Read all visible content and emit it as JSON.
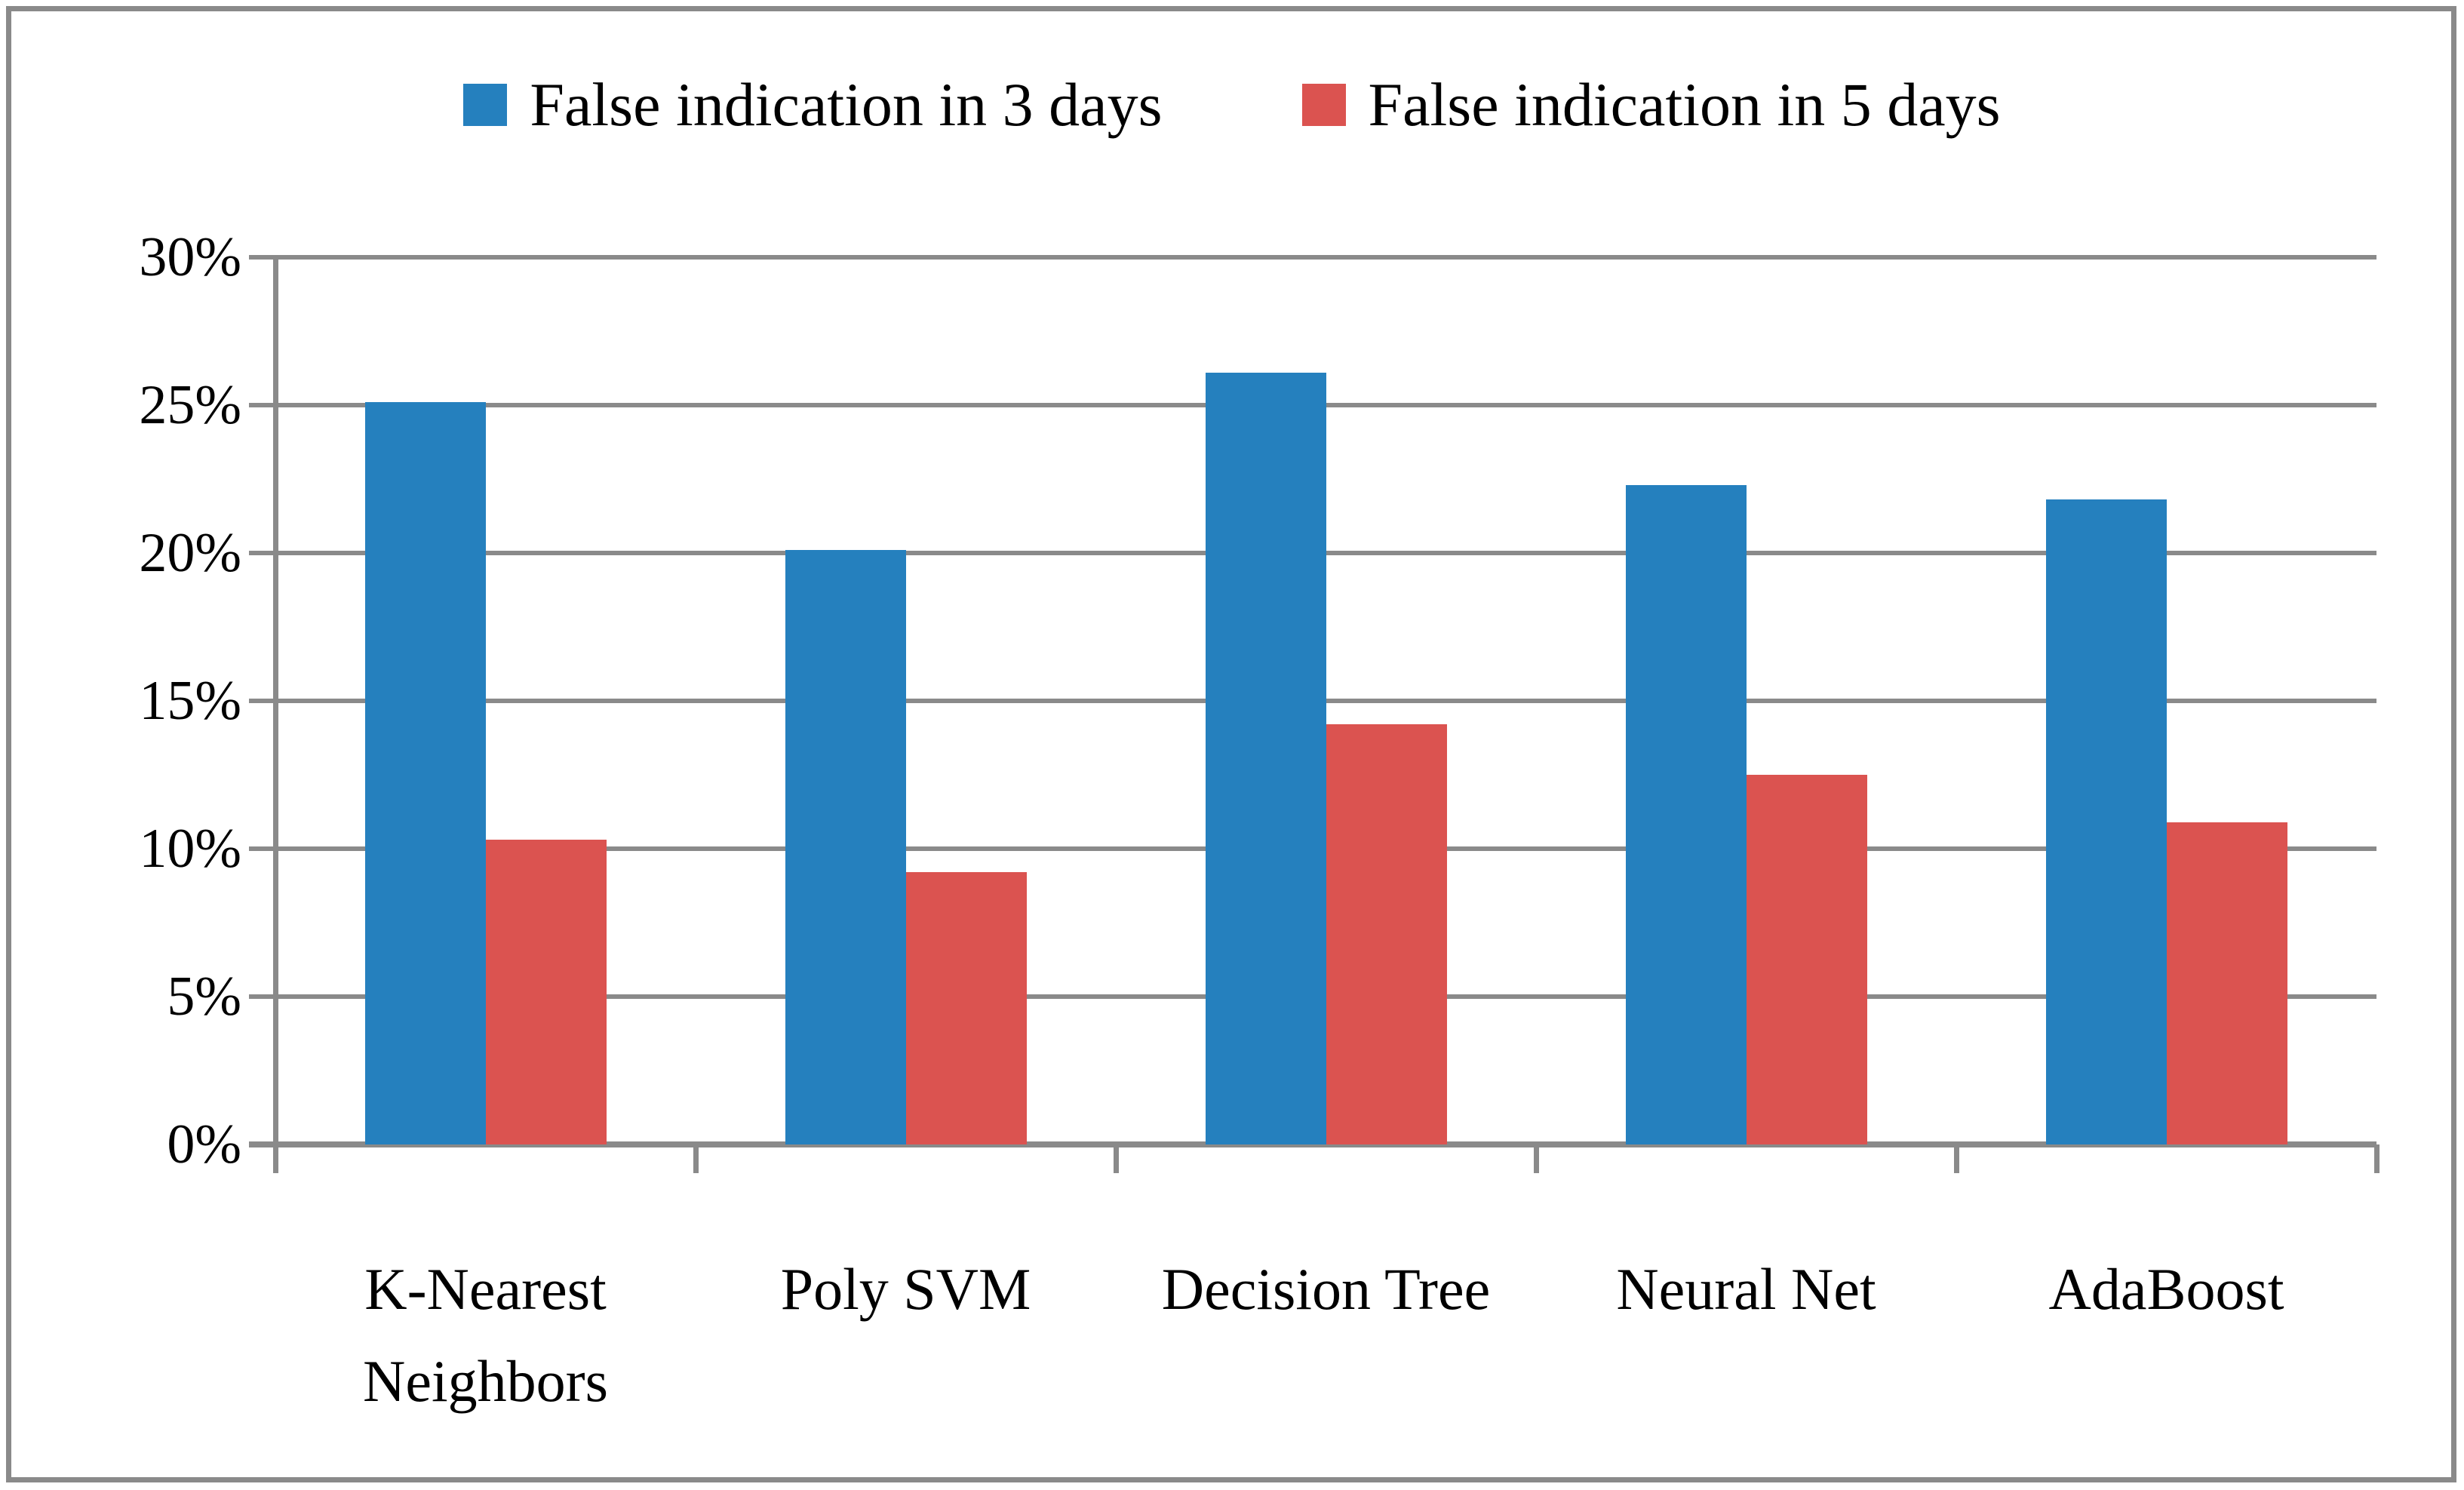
{
  "frame": {
    "border_color": "#8a8a8a"
  },
  "chart_data": {
    "type": "bar",
    "title": "",
    "categories": [
      "K-Nearest Neighbors",
      "Poly SVM",
      "Decision Tree",
      "Neural Net",
      "AdaBoost"
    ],
    "series": [
      {
        "name": "False indication in 3 days",
        "color": "#2580be",
        "values": [
          25.1,
          20.1,
          26.1,
          22.3,
          21.8
        ]
      },
      {
        "name": "False indication in 5 days",
        "color": "#db5350",
        "values": [
          10.3,
          9.2,
          14.2,
          12.5,
          10.9
        ]
      }
    ],
    "ylim": [
      0,
      30
    ],
    "ytick_step": 5,
    "ytick_labels": [
      "0%",
      "5%",
      "10%",
      "15%",
      "20%",
      "25%",
      "30%"
    ],
    "grid": true,
    "gridline_color": "#8a8a8a",
    "axis_color": "#8a8a8a",
    "legend_position": "top"
  }
}
